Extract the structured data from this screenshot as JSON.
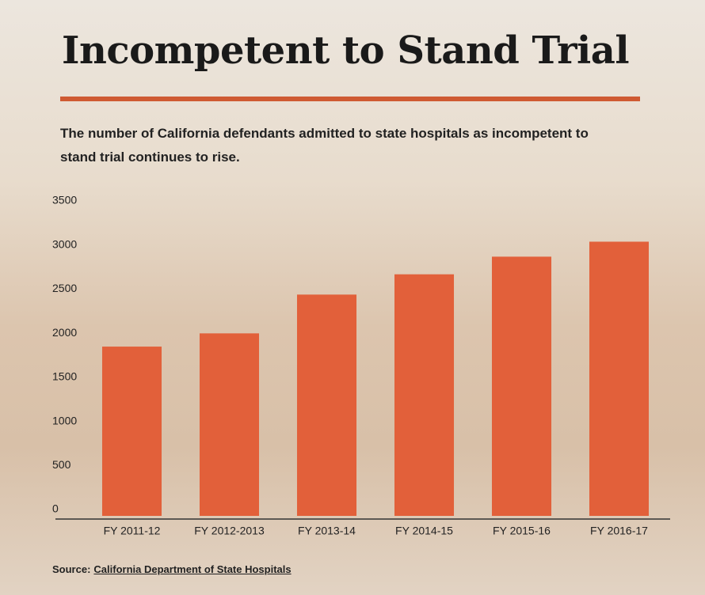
{
  "chart_data": {
    "type": "bar",
    "title": "Incompetent to Stand Trial",
    "subtitle": "The number of California defendants admitted to state hospitals as incompetent to stand trial continues to rise.",
    "categories": [
      "FY 2011-12",
      "FY 2012-2013",
      "FY 2013-14",
      "FY 2014-15",
      "FY 2015-16",
      "FY 2016-17"
    ],
    "values": [
      1920,
      2070,
      2510,
      2740,
      2940,
      3110
    ],
    "color": "#e2603a",
    "ylim": [
      0,
      3500
    ],
    "yticks": [
      0,
      500,
      1000,
      1500,
      2000,
      2500,
      3000,
      3500
    ],
    "grid": false,
    "source_label": "Source:",
    "source_link": "California Department of State Hospitals"
  }
}
